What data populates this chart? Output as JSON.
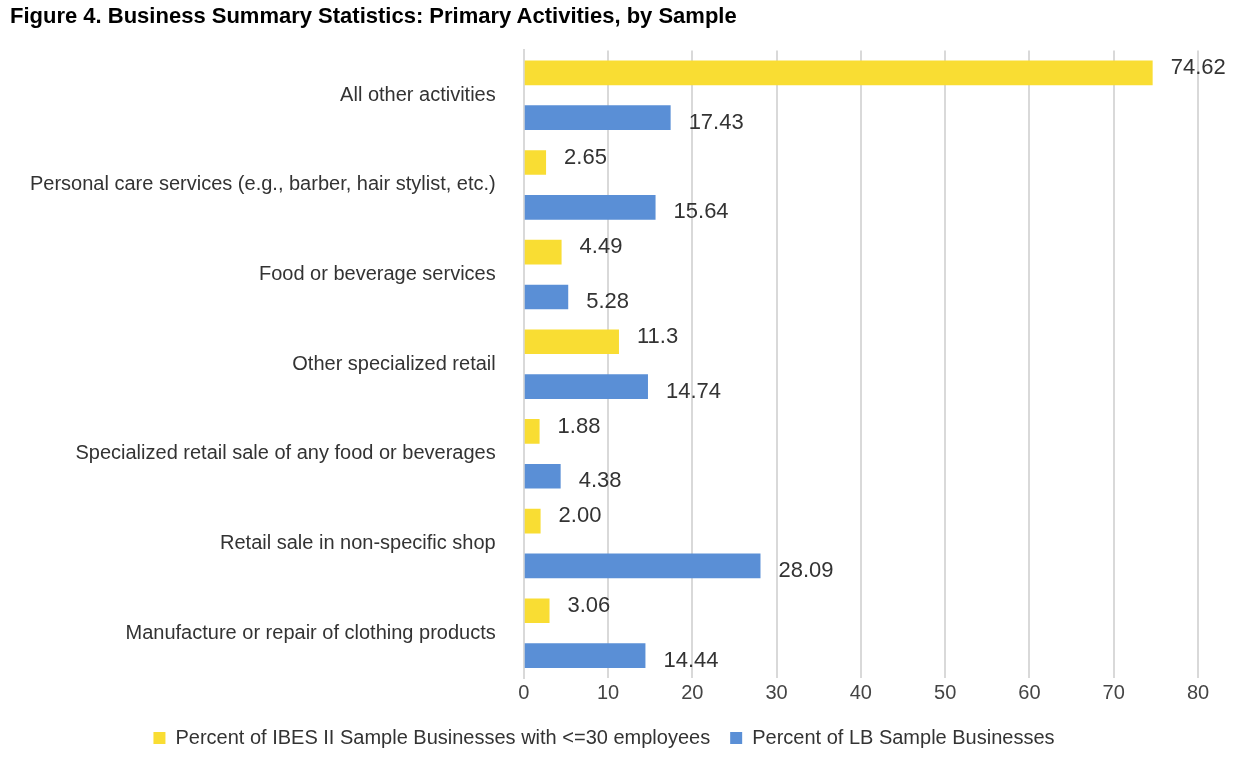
{
  "chart_data": {
    "type": "bar",
    "orientation": "horizontal",
    "title": "Figure 4. Business Summary Statistics: Primary Activities, by Sample",
    "categories": [
      "All other activities",
      "Personal care services (e.g., barber, hair stylist, etc.)",
      "Food or beverage services",
      "Other specialized retail",
      "Specialized retail sale of any food or beverages",
      "Retail sale in non-specific shop",
      "Manufacture or repair of clothing products"
    ],
    "series": [
      {
        "name": "Percent of IBES II Sample Businesses with <=30 employees",
        "color": "#f9dd33",
        "values": [
          74.62,
          2.65,
          4.49,
          11.3,
          1.88,
          2.0,
          3.06
        ],
        "value_labels": [
          "74.62",
          "2.65",
          "4.49",
          "11.3",
          "1.88",
          "2.00",
          "3.06"
        ]
      },
      {
        "name": "Percent of LB Sample Businesses",
        "color": "#5a8fd6",
        "values": [
          17.43,
          15.64,
          5.28,
          14.74,
          4.38,
          28.09,
          14.44
        ],
        "value_labels": [
          "17.43",
          "15.64",
          "5.28",
          "14.74",
          "4.38",
          "28.09",
          "14.44"
        ]
      }
    ],
    "xlim": [
      0,
      80
    ],
    "xticks": [
      0,
      10,
      20,
      30,
      40,
      50,
      60,
      70,
      80
    ],
    "grid": "x",
    "legend": "bottom"
  }
}
